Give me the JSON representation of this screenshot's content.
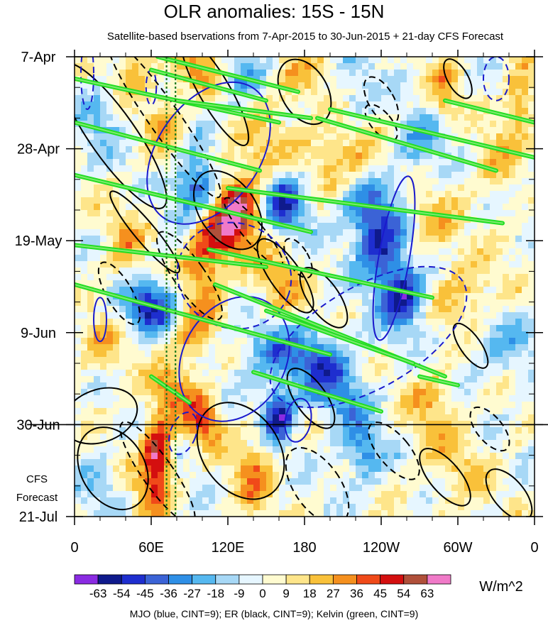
{
  "chart_data": {
    "type": "heatmap",
    "title": "OLR anomalies: 15S - 15N",
    "subtitle": "Satellite-based bservations from 7-Apr-2015 to 30-Jun-2015 + 21-day CFS Forecast",
    "x_ticks": [
      {
        "lon": 0,
        "label": "0"
      },
      {
        "lon": 60,
        "label": "60E"
      },
      {
        "lon": 120,
        "label": "120E"
      },
      {
        "lon": 180,
        "label": "180"
      },
      {
        "lon": 240,
        "label": "120W"
      },
      {
        "lon": 300,
        "label": "60W"
      },
      {
        "lon": 360,
        "label": "0"
      }
    ],
    "y_ticks": [
      {
        "day": 0,
        "label": "7-Apr"
      },
      {
        "day": 21,
        "label": "28-Apr"
      },
      {
        "day": 42,
        "label": "19-May"
      },
      {
        "day": 63,
        "label": "9-Jun"
      },
      {
        "day": 84,
        "label": "30-Jun"
      },
      {
        "day": 105,
        "label": "21-Jul"
      }
    ],
    "xlim": [
      0,
      360
    ],
    "ylim_days": [
      0,
      105
    ],
    "forecast_start_day": 84,
    "forecast_label_line1": "CFS",
    "forecast_label_line2": "Forecast",
    "vertical_reference_lons": [
      72,
      79
    ],
    "colorbar": {
      "levels": [
        "-63",
        "-54",
        "-45",
        "-36",
        "-27",
        "-18",
        "-9",
        "0",
        "9",
        "18",
        "27",
        "36",
        "45",
        "54",
        "63"
      ],
      "colors": [
        "#8a2be2",
        "#0f1a8c",
        "#1e2ecf",
        "#3b63d6",
        "#2e8fe6",
        "#55b8f0",
        "#a7d8f6",
        "#e6f6ff",
        "#fffbd0",
        "#fee58a",
        "#f9c13a",
        "#f5901e",
        "#f04a19",
        "#d40f0f",
        "#b0503a",
        "#f07ac8"
      ],
      "units": "W/m^2"
    },
    "caption": "MJO (blue, CINT=9); ER (black, CINT=9); Kelvin (green, CINT=9)",
    "anomaly_features": [
      {
        "lon": 45,
        "day": 3,
        "val": 25,
        "slon": 10,
        "sday": 4
      },
      {
        "lon": 95,
        "day": 2,
        "val": 30,
        "slon": 12,
        "sday": 4
      },
      {
        "lon": 130,
        "day": 4,
        "val": -25,
        "slon": 10,
        "sday": 5
      },
      {
        "lon": 175,
        "day": 5,
        "val": 22,
        "slon": 14,
        "sday": 4
      },
      {
        "lon": 220,
        "day": 8,
        "val": -18,
        "slon": 12,
        "sday": 5
      },
      {
        "lon": 290,
        "day": 8,
        "val": 25,
        "slon": 8,
        "sday": 5
      },
      {
        "lon": 350,
        "day": 10,
        "val": 30,
        "slon": 8,
        "sday": 6
      },
      {
        "lon": 20,
        "day": 14,
        "val": -22,
        "slon": 12,
        "sday": 5
      },
      {
        "lon": 70,
        "day": 15,
        "val": 25,
        "slon": 10,
        "sday": 6
      },
      {
        "lon": 150,
        "day": 20,
        "val": 18,
        "slon": 18,
        "sday": 6
      },
      {
        "lon": 210,
        "day": 22,
        "val": 25,
        "slon": 20,
        "sday": 6
      },
      {
        "lon": 270,
        "day": 20,
        "val": -25,
        "slon": 15,
        "sday": 5
      },
      {
        "lon": 330,
        "day": 24,
        "val": 20,
        "slon": 12,
        "sday": 6
      },
      {
        "lon": 95,
        "day": 30,
        "val": -50,
        "slon": 12,
        "sday": 5
      },
      {
        "lon": 130,
        "day": 34,
        "val": 45,
        "slon": 12,
        "sday": 6
      },
      {
        "lon": 115,
        "day": 40,
        "val": 40,
        "slon": 14,
        "sday": 6
      },
      {
        "lon": 165,
        "day": 33,
        "val": -50,
        "slon": 12,
        "sday": 5
      },
      {
        "lon": 230,
        "day": 35,
        "val": -35,
        "slon": 15,
        "sday": 5
      },
      {
        "lon": 280,
        "day": 38,
        "val": 22,
        "slon": 15,
        "sday": 5
      },
      {
        "lon": 40,
        "day": 42,
        "val": 20,
        "slon": 12,
        "sday": 6
      },
      {
        "lon": 100,
        "day": 48,
        "val": 30,
        "slon": 10,
        "sday": 7
      },
      {
        "lon": 240,
        "day": 44,
        "val": -45,
        "slon": 14,
        "sday": 6
      },
      {
        "lon": 258,
        "day": 55,
        "val": -55,
        "slon": 12,
        "sday": 5
      },
      {
        "lon": 60,
        "day": 57,
        "val": -55,
        "slon": 14,
        "sday": 4
      },
      {
        "lon": 160,
        "day": 52,
        "val": 25,
        "slon": 14,
        "sday": 6
      },
      {
        "lon": 310,
        "day": 55,
        "val": 22,
        "slon": 20,
        "sday": 6
      },
      {
        "lon": 20,
        "day": 66,
        "val": 20,
        "slon": 12,
        "sday": 5
      },
      {
        "lon": 90,
        "day": 64,
        "val": 25,
        "slon": 12,
        "sday": 6
      },
      {
        "lon": 150,
        "day": 67,
        "val": -30,
        "slon": 15,
        "sday": 5
      },
      {
        "lon": 190,
        "day": 70,
        "val": -40,
        "slon": 18,
        "sday": 5
      },
      {
        "lon": 330,
        "day": 65,
        "val": -18,
        "slon": 20,
        "sday": 6
      },
      {
        "lon": 75,
        "day": 76,
        "val": 30,
        "slon": 12,
        "sday": 4
      },
      {
        "lon": 100,
        "day": 83,
        "val": 45,
        "slon": 10,
        "sday": 4
      },
      {
        "lon": 65,
        "day": 90,
        "val": 60,
        "slon": 8,
        "sday": 5
      },
      {
        "lon": 160,
        "day": 82,
        "val": -60,
        "slon": 8,
        "sday": 4
      },
      {
        "lon": 210,
        "day": 78,
        "val": -22,
        "slon": 15,
        "sday": 5
      },
      {
        "lon": 280,
        "day": 80,
        "val": 22,
        "slon": 15,
        "sday": 6
      },
      {
        "lon": 225,
        "day": 90,
        "val": -30,
        "slon": 12,
        "sday": 5
      },
      {
        "lon": 140,
        "day": 96,
        "val": 28,
        "slon": 12,
        "sday": 6
      },
      {
        "lon": 60,
        "day": 100,
        "val": 30,
        "slon": 10,
        "sday": 5
      },
      {
        "lon": 300,
        "day": 95,
        "val": 15,
        "slon": 20,
        "sday": 6
      },
      {
        "lon": 20,
        "day": 98,
        "val": -15,
        "slon": 12,
        "sday": 5
      }
    ],
    "overlay_contours": {
      "kelvin_green": [
        [
          [
            65,
            0
          ],
          [
            175,
            8
          ]
        ],
        [
          [
            60,
            3
          ],
          [
            150,
            10
          ]
        ],
        [
          [
            0,
            5
          ],
          [
            160,
            15
          ]
        ],
        [
          [
            80,
            10
          ],
          [
            185,
            14
          ]
        ],
        [
          [
            0,
            15
          ],
          [
            145,
            26
          ]
        ],
        [
          [
            200,
            12
          ],
          [
            360,
            23
          ]
        ],
        [
          [
            190,
            14
          ],
          [
            330,
            26
          ]
        ],
        [
          [
            0,
            27
          ],
          [
            185,
            40
          ]
        ],
        [
          [
            120,
            30
          ],
          [
            335,
            38
          ]
        ],
        [
          [
            290,
            10
          ],
          [
            360,
            15
          ]
        ],
        [
          [
            0,
            43
          ],
          [
            150,
            48
          ]
        ],
        [
          [
            105,
            44
          ],
          [
            280,
            55
          ]
        ],
        [
          [
            0,
            52
          ],
          [
            200,
            68
          ]
        ],
        [
          [
            110,
            52
          ],
          [
            290,
            73
          ]
        ],
        [
          [
            140,
            72
          ],
          [
            240,
            81
          ]
        ],
        [
          [
            150,
            58
          ],
          [
            265,
            70
          ]
        ],
        [
          [
            270,
            73
          ],
          [
            300,
            75
          ]
        ],
        [
          [
            60,
            73
          ],
          [
            90,
            79
          ]
        ]
      ],
      "mjo_blue": [
        {
          "lon": 105,
          "day": 22,
          "rlon": 40,
          "rday": 18,
          "rot": 35,
          "dashed": false
        },
        {
          "lon": 125,
          "day": 50,
          "rlon": 45,
          "rday": 12,
          "rot": 20,
          "dashed": true
        },
        {
          "lon": 125,
          "day": 69,
          "rlon": 40,
          "rday": 15,
          "rot": 30,
          "dashed": false
        },
        {
          "lon": 230,
          "day": 64,
          "rlon": 40,
          "rday": 25,
          "rot": 60,
          "dashed": true
        },
        {
          "lon": 250,
          "day": 46,
          "rlon": 12,
          "rday": 19,
          "rot": 10,
          "dashed": false
        },
        {
          "lon": 20,
          "day": 60,
          "rlon": 5,
          "rday": 5,
          "rot": 0,
          "dashed": false
        },
        {
          "lon": 175,
          "day": 83,
          "rlon": 10,
          "rday": 5,
          "rot": 10,
          "dashed": false
        },
        {
          "lon": 85,
          "day": 86,
          "rlon": 10,
          "rday": 5,
          "rot": 20,
          "dashed": true
        },
        {
          "lon": 10,
          "day": 4,
          "rlon": 5,
          "rday": 8,
          "rot": 0,
          "dashed": true
        },
        {
          "lon": 60,
          "day": 7,
          "rlon": 4,
          "rday": 4,
          "rot": 0,
          "dashed": true
        },
        {
          "lon": 330,
          "day": 5,
          "rlon": 10,
          "rday": 5,
          "rot": 0,
          "dashed": true
        }
      ],
      "er_black": [
        {
          "lon": 30,
          "day": 18,
          "rlon": 18,
          "rday": 20,
          "rot": -35,
          "dashed": false
        },
        {
          "lon": 70,
          "day": 14,
          "rlon": 12,
          "rday": 22,
          "rot": -35,
          "dashed": true
        },
        {
          "lon": 110,
          "day": 8,
          "rlon": 12,
          "rday": 14,
          "rot": -30,
          "dashed": false
        },
        {
          "lon": 180,
          "day": 8,
          "rlon": 18,
          "rday": 8,
          "rot": -30,
          "dashed": false
        },
        {
          "lon": 240,
          "day": 10,
          "rlon": 10,
          "rday": 6,
          "rot": -30,
          "dashed": true
        },
        {
          "lon": 300,
          "day": 5,
          "rlon": 8,
          "rday": 5,
          "rot": -30,
          "dashed": false
        },
        {
          "lon": 120,
          "day": 35,
          "rlon": 22,
          "rday": 10,
          "rot": -35,
          "dashed": false
        },
        {
          "lon": 140,
          "day": 40,
          "rlon": 8,
          "rday": 10,
          "rot": -40,
          "dashed": true
        },
        {
          "lon": 55,
          "day": 40,
          "rlon": 8,
          "rday": 12,
          "rot": -40,
          "dashed": false
        },
        {
          "lon": 35,
          "day": 54,
          "rlon": 10,
          "rday": 8,
          "rot": -30,
          "dashed": true
        },
        {
          "lon": 90,
          "day": 50,
          "rlon": 12,
          "rday": 12,
          "rot": -35,
          "dashed": true
        },
        {
          "lon": 165,
          "day": 50,
          "rlon": 12,
          "rday": 10,
          "rot": -35,
          "dashed": false
        },
        {
          "lon": 175,
          "day": 46,
          "rlon": 8,
          "rday": 5,
          "rot": -30,
          "dashed": true
        },
        {
          "lon": 195,
          "day": 55,
          "rlon": 12,
          "rday": 8,
          "rot": -35,
          "dashed": false
        },
        {
          "lon": 20,
          "day": 82,
          "rlon": 30,
          "rday": 6,
          "rot": -20,
          "dashed": false
        },
        {
          "lon": 30,
          "day": 94,
          "rlon": 25,
          "rday": 10,
          "rot": -30,
          "dashed": false
        },
        {
          "lon": 65,
          "day": 95,
          "rlon": 12,
          "rday": 14,
          "rot": -35,
          "dashed": true
        },
        {
          "lon": 130,
          "day": 90,
          "rlon": 30,
          "rday": 12,
          "rot": -35,
          "dashed": false
        },
        {
          "lon": 185,
          "day": 78,
          "rlon": 12,
          "rday": 8,
          "rot": -35,
          "dashed": false
        },
        {
          "lon": 190,
          "day": 98,
          "rlon": 18,
          "rday": 10,
          "rot": -35,
          "dashed": true
        },
        {
          "lon": 250,
          "day": 90,
          "rlon": 12,
          "rday": 8,
          "rot": -40,
          "dashed": true
        },
        {
          "lon": 290,
          "day": 96,
          "rlon": 12,
          "rday": 8,
          "rot": -40,
          "dashed": false
        },
        {
          "lon": 325,
          "day": 85,
          "rlon": 10,
          "rday": 6,
          "rot": -40,
          "dashed": true
        },
        {
          "lon": 340,
          "day": 100,
          "rlon": 12,
          "rday": 7,
          "rot": -40,
          "dashed": false
        },
        {
          "lon": 310,
          "day": 66,
          "rlon": 8,
          "rday": 6,
          "rot": -35,
          "dashed": false
        },
        {
          "lon": 240,
          "day": 15,
          "rlon": 8,
          "rday": 5,
          "rot": -40,
          "dashed": true
        }
      ]
    }
  }
}
